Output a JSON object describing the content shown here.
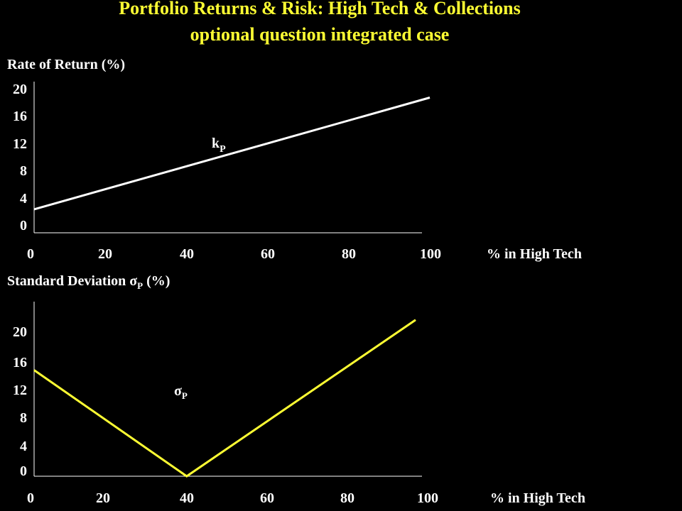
{
  "title_line1": "Portfolio Returns & Risk: High Tech & Collections",
  "title_line2": "optional question integrated case",
  "colors": {
    "background": "#000000",
    "title": "#ffff33",
    "text": "#ffffff",
    "return_line": "#ffffff",
    "risk_line": "#ffff33"
  },
  "chart_data": [
    {
      "type": "line",
      "ylabel": "Rate of Return (%)",
      "xlabel": "% in High Tech",
      "x_ticks": [
        "0",
        "20",
        "40",
        "60",
        "80",
        "100"
      ],
      "y_ticks": [
        "20",
        "16",
        "12",
        "8",
        "4",
        "0"
      ],
      "xlim": [
        0,
        100
      ],
      "ylim": [
        0,
        20
      ],
      "grid": false,
      "series": [
        {
          "name": "k",
          "name_subscript": "P",
          "x": [
            0,
            100
          ],
          "y": [
            2.3,
            18.7
          ]
        }
      ]
    },
    {
      "type": "line",
      "ylabel_prefix": "Standard Deviation ",
      "ylabel_symbol": "σ",
      "ylabel_subscript": "P",
      "ylabel_suffix": " (%)",
      "xlabel": "% in High Tech",
      "x_ticks": [
        "0",
        "20",
        "40",
        "60",
        "80",
        "100"
      ],
      "y_ticks": [
        "20",
        "16",
        "12",
        "8",
        "4",
        "0"
      ],
      "xlim": [
        0,
        100
      ],
      "ylim": [
        0,
        20
      ],
      "grid": false,
      "series": [
        {
          "name": "σ",
          "name_subscript": "P",
          "x": [
            0,
            40,
            100
          ],
          "y": [
            14.8,
            0,
            21.8
          ]
        }
      ]
    }
  ]
}
